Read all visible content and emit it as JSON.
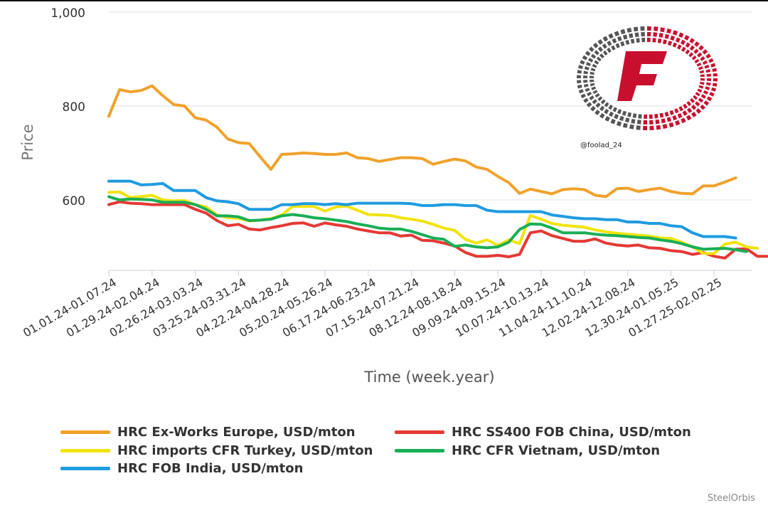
{
  "chart_data": {
    "type": "line",
    "ylabel": "Price",
    "xlabel": "Time (week.year)",
    "ylim": [
      450,
      1000
    ],
    "yticks": [
      {
        "value": 600,
        "label": "600"
      },
      {
        "value": 800,
        "label": "800"
      },
      {
        "value": 1000,
        "label": "1,000"
      }
    ],
    "xtick_labels": [
      "01.01.24-01.07.24",
      "01.29.24-02.04.24",
      "02.26.24-03.03.24",
      "03.25.24-03.31.24",
      "04.22.24-04.28.24",
      "05.20.24-05.26.24",
      "06.17.24-06.23.24",
      "07.15.24-07.21.24",
      "08.12.24-08.18.24",
      "09.09.24-09.15.24",
      "10.07.24-10.13.24",
      "11.04.24-11.10.24",
      "12.02.24-12.08.24",
      "12.30.24-01.05.25",
      "01.27.25-02.02.25"
    ],
    "grid": "horizontal",
    "legend_placement": "bottom",
    "series": [
      {
        "name": "HRC Ex-Works Europe, USD/mton",
        "color": "#f0a22c",
        "values": [
          778,
          835,
          830,
          833,
          843,
          822,
          803,
          800,
          775,
          770,
          755,
          730,
          722,
          720,
          692,
          665,
          697,
          698,
          700,
          699,
          697,
          697,
          700,
          690,
          688,
          682,
          686,
          690,
          690,
          688,
          676,
          682,
          687,
          683,
          670,
          665,
          650,
          637,
          614,
          623,
          618,
          613,
          622,
          624,
          622,
          610,
          607,
          624,
          625,
          618,
          622,
          625,
          618,
          614,
          613,
          630,
          630,
          638,
          647
        ]
      },
      {
        "name": "HRC SS400 FOB China, USD/mton",
        "color": "#e53935",
        "values": [
          590,
          596,
          593,
          592,
          590,
          590,
          590,
          590,
          580,
          572,
          556,
          545,
          548,
          538,
          536,
          541,
          545,
          550,
          551,
          544,
          551,
          547,
          544,
          538,
          534,
          530,
          530,
          523,
          525,
          514,
          513,
          508,
          502,
          488,
          480,
          480,
          482,
          479,
          484,
          530,
          534,
          524,
          518,
          512,
          512,
          517,
          508,
          504,
          502,
          504,
          498,
          497,
          492,
          490,
          484,
          488,
          480,
          476,
          495,
          496,
          480,
          480,
          485
        ]
      },
      {
        "name": "HRC imports CFR Turkey, USD/mton",
        "color": "#f1e30f",
        "values": [
          616,
          617,
          605,
          607,
          610,
          600,
          598,
          599,
          590,
          585,
          568,
          562,
          561,
          555,
          557,
          560,
          568,
          586,
          586,
          586,
          576,
          585,
          587,
          578,
          569,
          568,
          567,
          562,
          559,
          555,
          548,
          540,
          535,
          516,
          508,
          515,
          503,
          515,
          507,
          567,
          559,
          550,
          546,
          544,
          542,
          536,
          532,
          529,
          527,
          525,
          523,
          519,
          518,
          510,
          500,
          486,
          486,
          506,
          510,
          500,
          497
        ]
      },
      {
        "name": "HRC CFR Vietnam, USD/mton",
        "color": "#1aae56",
        "values": [
          607,
          600,
          602,
          601,
          600,
          595,
          595,
          595,
          590,
          580,
          566,
          566,
          564,
          556,
          557,
          559,
          566,
          569,
          566,
          562,
          560,
          557,
          554,
          549,
          545,
          540,
          538,
          538,
          533,
          526,
          519,
          516,
          501,
          504,
          500,
          498,
          500,
          510,
          537,
          549,
          548,
          540,
          530,
          530,
          530,
          527,
          525,
          524,
          522,
          520,
          519,
          515,
          512,
          507,
          500,
          495,
          496,
          497,
          494,
          490
        ]
      },
      {
        "name": "HRC FOB India, USD/mton",
        "color": "#1f9be0",
        "values": [
          640,
          640,
          640,
          632,
          633,
          635,
          620,
          620,
          620,
          605,
          598,
          596,
          592,
          580,
          580,
          580,
          590,
          590,
          592,
          592,
          590,
          592,
          590,
          593,
          593,
          593,
          593,
          593,
          592,
          588,
          588,
          590,
          590,
          588,
          588,
          578,
          575,
          575,
          575,
          575,
          575,
          568,
          565,
          562,
          560,
          560,
          558,
          558,
          553,
          553,
          550,
          550,
          545,
          543,
          530,
          522,
          522,
          522,
          519
        ]
      }
    ]
  },
  "watermark": {
    "handle": "@foolad_24",
    "logo_icon": "foolad-f-logo",
    "logo_red": "#c8102e",
    "logo_gray": "#555555"
  },
  "credit": "SteelOrbis"
}
